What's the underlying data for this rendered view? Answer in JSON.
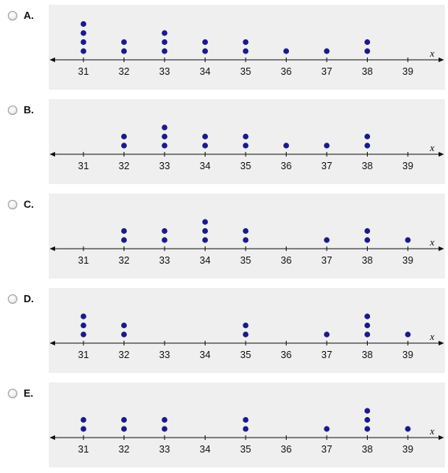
{
  "options": [
    {
      "letter": "A.",
      "counts": {
        "31": 4,
        "32": 2,
        "33": 3,
        "34": 2,
        "35": 2,
        "36": 1,
        "37": 1,
        "38": 2
      }
    },
    {
      "letter": "B.",
      "counts": {
        "32": 2,
        "33": 3,
        "34": 2,
        "35": 2,
        "36": 1,
        "37": 1,
        "38": 2
      }
    },
    {
      "letter": "C.",
      "counts": {
        "32": 2,
        "33": 2,
        "34": 3,
        "35": 2,
        "37": 1,
        "38": 2,
        "39": 1
      }
    },
    {
      "letter": "D.",
      "counts": {
        "31": 3,
        "32": 2,
        "35": 2,
        "37": 1,
        "38": 3,
        "39": 1
      }
    },
    {
      "letter": "E.",
      "counts": {
        "31": 2,
        "32": 2,
        "33": 2,
        "35": 2,
        "37": 1,
        "38": 3,
        "39": 1
      }
    }
  ],
  "axis": {
    "ticks": [
      "31",
      "32",
      "33",
      "34",
      "35",
      "36",
      "37",
      "38",
      "39"
    ],
    "variable": "x"
  },
  "colors": {
    "dot": "#1a1a8c",
    "panel": "#efefef",
    "axis": "#111111"
  }
}
